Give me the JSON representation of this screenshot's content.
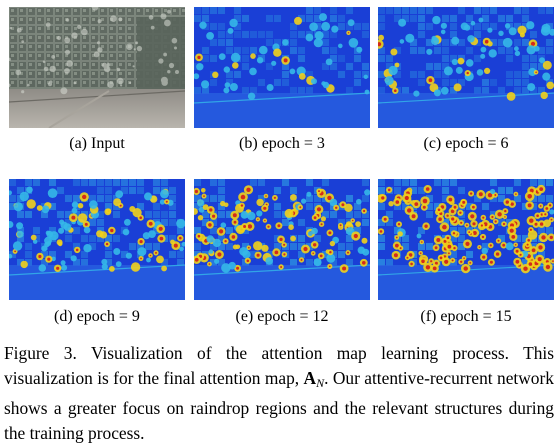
{
  "subfigures": [
    {
      "id": "a",
      "label": "(a) Input",
      "kind": "input"
    },
    {
      "id": "b",
      "label": "(b) epoch = 3",
      "kind": "attention",
      "level": 0.15
    },
    {
      "id": "c",
      "label": "(c) epoch = 6",
      "kind": "attention",
      "level": 0.3
    },
    {
      "id": "d",
      "label": "(d) epoch = 9",
      "kind": "attention",
      "level": 0.55
    },
    {
      "id": "e",
      "label": "(e) epoch = 12",
      "kind": "attention",
      "level": 0.75
    },
    {
      "id": "f",
      "label": "(f) epoch = 15",
      "kind": "attention",
      "level": 0.95
    }
  ],
  "caption": {
    "figure_label": "Figure 3.",
    "text_before_math": "Visualization of the attention map learning process. This visualization is for the final attention map,",
    "math_symbol": "A",
    "math_subscript": "N",
    "text_after_math": ". Our attentive-recurrent network shows a greater focus on raindrop regions and the relevant structures during the training process."
  },
  "colors": {
    "attention_low": "#1a3fd6",
    "attention_mid": "#35b8e8",
    "attention_high": "#f2d21a",
    "attention_peak": "#d42a1a"
  }
}
